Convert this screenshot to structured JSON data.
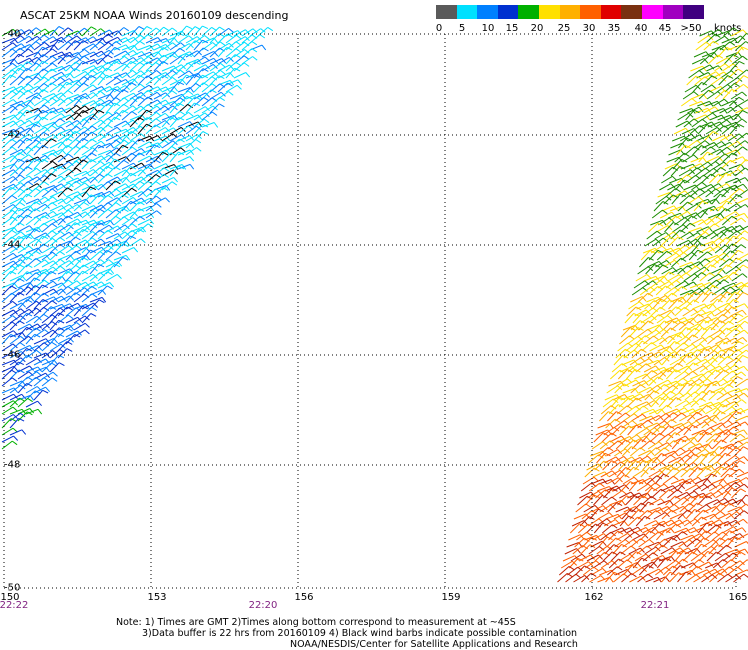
{
  "title": "ASCAT 25KM NOAA Winds 20160109 descending",
  "colorbar": {
    "colors": [
      "#5a5a5a",
      "#00e0ff",
      "#0080ff",
      "#0030d0",
      "#00b000",
      "#ffe000",
      "#ffb000",
      "#ff6000",
      "#e00000",
      "#7a3010",
      "#ff00ff",
      "#a000c0",
      "#400080"
    ],
    "labels": [
      "0",
      "5",
      "10",
      "15",
      "20",
      "25",
      "30",
      "35",
      "40",
      "45",
      ">50"
    ],
    "units": "knots"
  },
  "axes": {
    "x_ticks": [
      "150",
      "153",
      "156",
      "159",
      "162",
      "165"
    ],
    "y_ticks": [
      "-40",
      "-42",
      "-44",
      "-46",
      "-48",
      "-50"
    ]
  },
  "times": [
    "22:22",
    "22:20",
    "22:21"
  ],
  "notes": {
    "line1": "Note: 1) Times are GMT 2)Times along bottom correspond to measurement at ~45S",
    "line2": "3)Data buffer is 22 hrs from 20160109 4) Black wind barbs indicate possible contamination",
    "line3": "NOAA/NESDIS/Center for Satellite Applications and Research"
  }
}
